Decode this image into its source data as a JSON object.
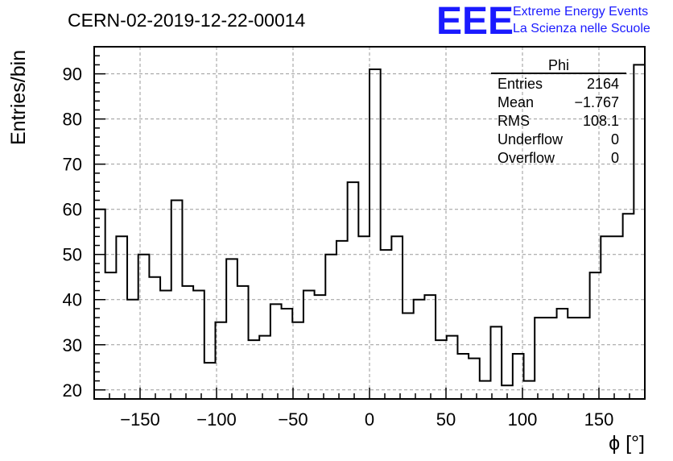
{
  "chart_data": {
    "type": "histogram",
    "title": "CERN-02-2019-12-22-00014",
    "xlabel": "ϕ [°]",
    "ylabel": "Entries/bin",
    "xlim": [
      -180,
      180
    ],
    "ylim": [
      18,
      96
    ],
    "bin_width": 7.2,
    "x_ticks": [
      -150,
      -100,
      -50,
      0,
      50,
      100,
      150
    ],
    "y_ticks": [
      20,
      30,
      40,
      50,
      60,
      70,
      80,
      90
    ],
    "grid": true,
    "values": [
      60,
      46,
      54,
      40,
      50,
      45,
      42,
      62,
      43,
      42,
      26,
      35,
      49,
      43,
      31,
      32,
      39,
      38,
      35,
      42,
      41,
      50,
      53,
      66,
      54,
      91,
      51,
      54,
      37,
      40,
      41,
      31,
      32,
      28,
      27,
      22,
      34,
      21,
      28,
      22,
      36,
      36,
      38,
      36,
      36,
      46,
      54,
      54,
      59,
      92
    ],
    "stats": {
      "name": "Phi",
      "rows": [
        {
          "label": "Entries",
          "value": "2164"
        },
        {
          "label": "Mean",
          "value": "−1.767"
        },
        {
          "label": "RMS",
          "value": "108.1"
        },
        {
          "label": "Underflow",
          "value": "0"
        },
        {
          "label": "Overflow",
          "value": "0"
        }
      ]
    }
  },
  "logo": {
    "mark": "EEE",
    "line1": "Extreme Energy Events",
    "line2": "La Scienza nelle Scuole",
    "color": "#1a1aff"
  }
}
